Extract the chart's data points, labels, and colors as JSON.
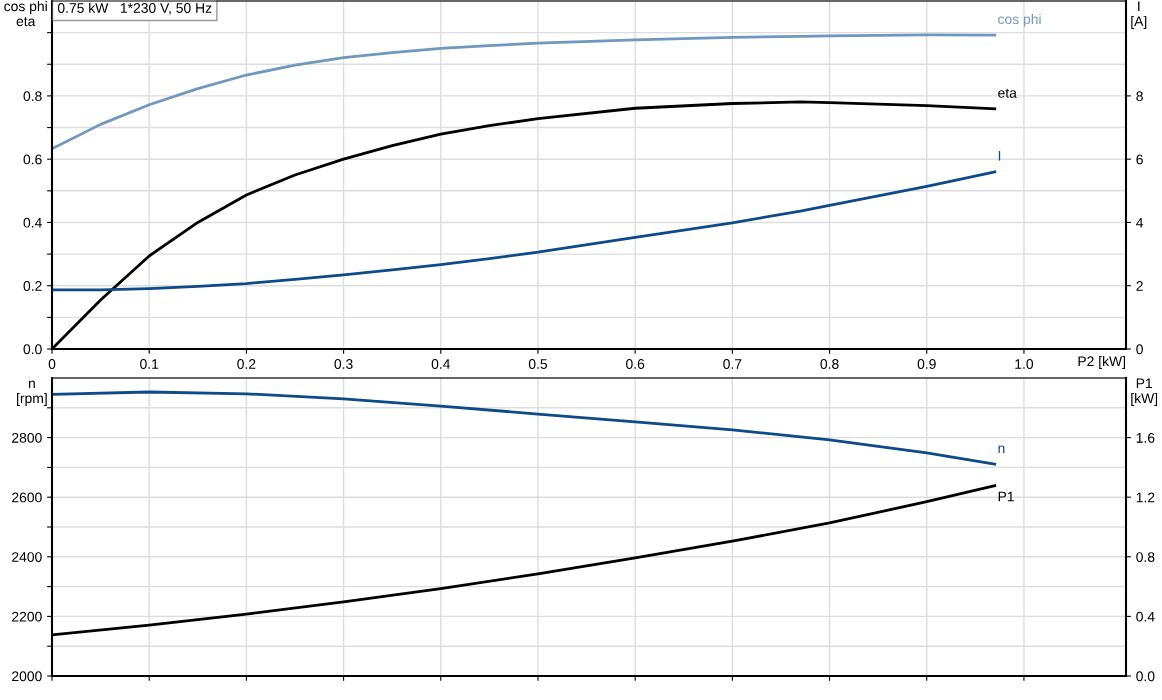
{
  "chart_data": [
    {
      "type": "line",
      "title": "0.75 kW   1*230 V, 50 Hz",
      "ylabel": "cos phi\neta",
      "y2label": "I\n[A]",
      "xlabel": "P2 [kW]",
      "x": [
        0,
        0.05,
        0.1,
        0.15,
        0.2,
        0.25,
        0.3,
        0.35,
        0.4,
        0.45,
        0.5,
        0.6,
        0.7,
        0.77,
        0.8,
        0.9,
        0.97
      ],
      "series": [
        {
          "name": "cos phi",
          "color": "#6f97c0",
          "values": [
            0.633,
            0.71,
            0.772,
            0.823,
            0.866,
            0.897,
            0.921,
            0.937,
            0.95,
            0.959,
            0.967,
            0.977,
            0.985,
            0.988,
            0.99,
            0.993,
            0.992
          ]
        },
        {
          "name": "eta",
          "color": "#000000",
          "values": [
            0,
            0.155,
            0.294,
            0.4,
            0.487,
            0.55,
            0.6,
            0.643,
            0.679,
            0.706,
            0.728,
            0.761,
            0.776,
            0.781,
            0.779,
            0.769,
            0.759
          ]
        },
        {
          "name": "I",
          "color": "#0d4a8a",
          "axis": "y2",
          "values": [
            1.87,
            1.87,
            1.91,
            1.98,
            2.07,
            2.2,
            2.34,
            2.5,
            2.67,
            2.86,
            3.06,
            3.53,
            3.99,
            4.36,
            4.54,
            5.14,
            5.6
          ]
        }
      ],
      "xlim": [
        0,
        1.105
      ],
      "xticks": [
        0,
        0.1,
        0.2,
        0.3,
        0.4,
        0.5,
        0.6,
        0.7,
        0.8,
        0.9,
        {
          "value": 1.0,
          "label": "1.0"
        }
      ],
      "ylim": [
        0,
        1.1
      ],
      "yticks": [
        {
          "value": 0,
          "label": "0.0"
        },
        {
          "value": 0.1,
          "label": null
        },
        0.2,
        {
          "value": 0.3,
          "label": null
        },
        0.4,
        {
          "value": 0.5,
          "label": null
        },
        0.6,
        {
          "value": 0.7,
          "label": null
        },
        0.8,
        {
          "value": 0.9,
          "label": null
        },
        {
          "value": 1.0,
          "label": null
        }
      ],
      "y2lim": [
        0,
        11
      ],
      "y2ticks": [
        0,
        2,
        4,
        6,
        8
      ],
      "grid": true
    },
    {
      "type": "line",
      "ylabel": "n\n[rpm]",
      "y2label": "P1\n[kW]",
      "x": [
        0,
        0.1,
        0.2,
        0.3,
        0.4,
        0.5,
        0.6,
        0.7,
        0.8,
        0.9,
        0.97
      ],
      "series": [
        {
          "name": "n",
          "color": "#0d4a8a",
          "values": [
            2945,
            2953,
            2947,
            2930,
            2906,
            2879,
            2853,
            2826,
            2792,
            2749,
            2711
          ]
        },
        {
          "name": "P1",
          "color": "#000000",
          "axis": "y2",
          "values": [
            0.276,
            0.342,
            0.416,
            0.497,
            0.587,
            0.685,
            0.793,
            0.905,
            1.027,
            1.17,
            1.277
          ]
        }
      ],
      "xlim": [
        0,
        1.105
      ],
      "xticks": [
        0,
        0.1,
        0.2,
        0.3,
        0.4,
        0.5,
        0.6,
        0.7,
        0.8,
        0.9,
        1.0
      ],
      "ylim": [
        2000,
        3000
      ],
      "yticks": [
        2000,
        {
          "value": 2100,
          "label": null
        },
        2200,
        {
          "value": 2300,
          "label": null
        },
        2400,
        {
          "value": 2500,
          "label": null
        },
        2600,
        {
          "value": 2700,
          "label": null
        },
        2800,
        {
          "value": 2900,
          "label": null
        }
      ],
      "y2lim": [
        0,
        2.0
      ],
      "y2ticks": [
        {
          "value": 0,
          "label": "0.0"
        },
        0.4,
        0.8,
        1.2,
        1.6
      ],
      "tick_labels": "y",
      "grid": true
    }
  ]
}
